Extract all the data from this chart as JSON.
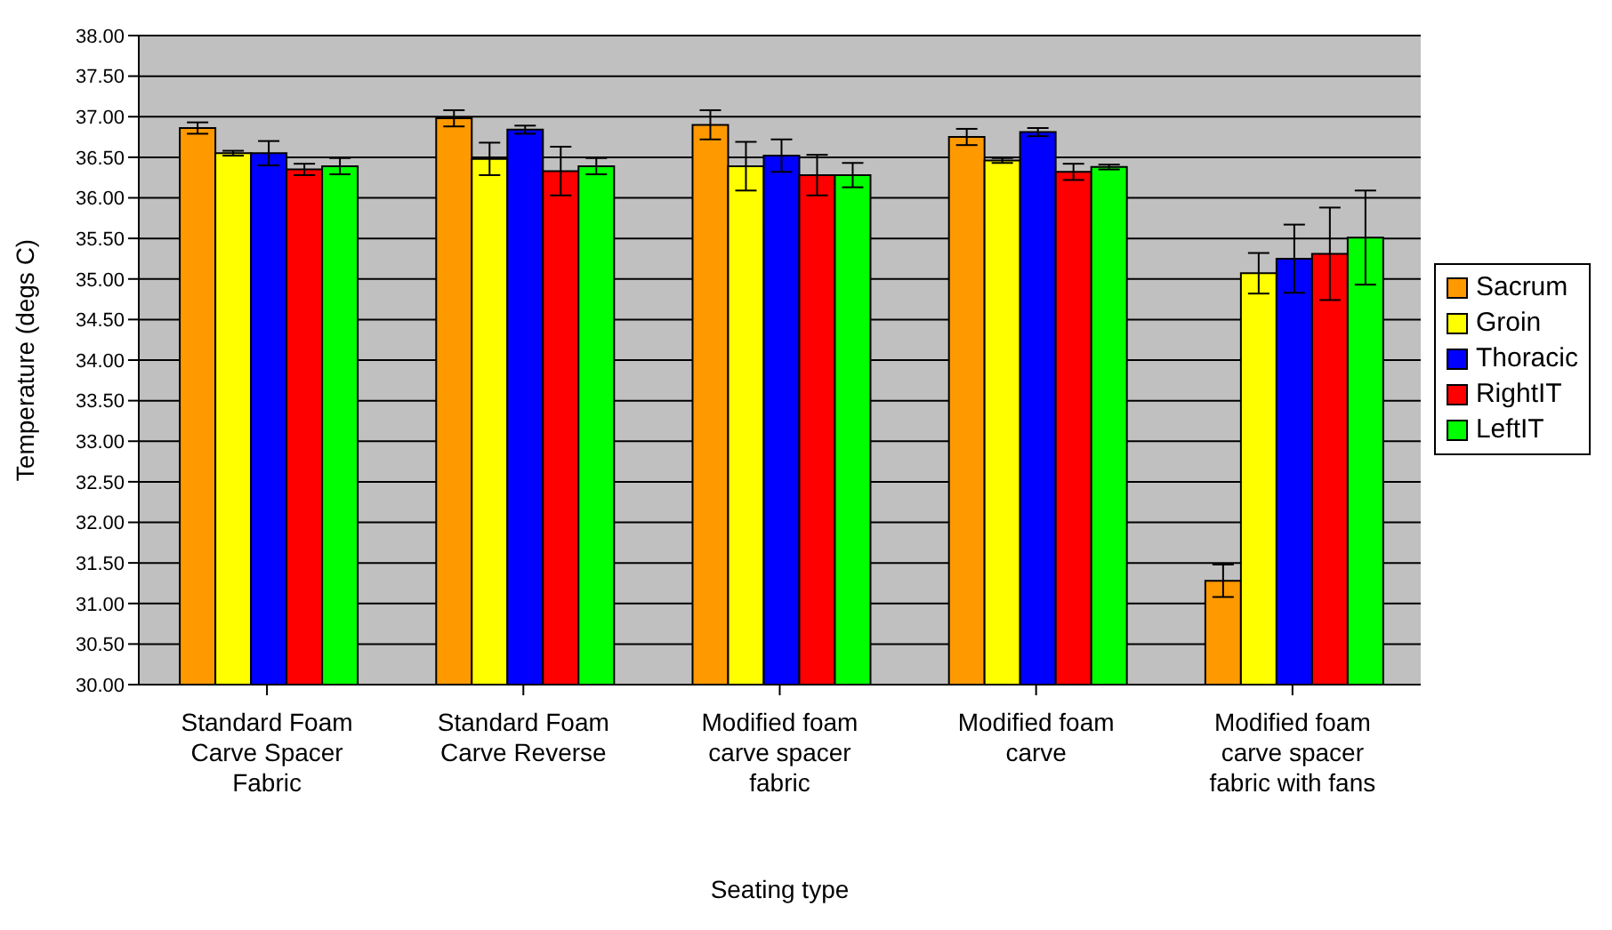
{
  "chart_data": {
    "type": "bar",
    "xlabel": "Seating type",
    "ylabel": "Temperature (degs C)",
    "categories": [
      "Standard Foam Carve Spacer Fabric",
      "Standard Foam Carve Reverse",
      "Modified foam carve spacer fabric",
      "Modified foam carve",
      "Modified foam carve spacer fabric with fans"
    ],
    "series": [
      {
        "name": "Sacrum",
        "color": "#ff9900",
        "values": [
          36.86,
          36.98,
          36.9,
          36.75,
          31.28
        ],
        "errors": [
          0.07,
          0.1,
          0.18,
          0.1,
          0.2
        ]
      },
      {
        "name": "Groin",
        "color": "#ffff00",
        "values": [
          36.55,
          36.48,
          36.39,
          36.46,
          35.07
        ],
        "errors": [
          0.03,
          0.2,
          0.3,
          0.03,
          0.25
        ]
      },
      {
        "name": "Thoracic",
        "color": "#0000ff",
        "values": [
          36.55,
          36.84,
          36.52,
          36.81,
          35.25
        ],
        "errors": [
          0.15,
          0.05,
          0.2,
          0.05,
          0.42
        ]
      },
      {
        "name": "RightIT",
        "color": "#ff0000",
        "values": [
          36.35,
          36.33,
          36.28,
          36.32,
          35.31
        ],
        "errors": [
          0.07,
          0.3,
          0.25,
          0.1,
          0.57
        ]
      },
      {
        "name": "LeftIT",
        "color": "#00ff00",
        "values": [
          36.39,
          36.39,
          36.28,
          36.38,
          35.51
        ],
        "errors": [
          0.1,
          0.1,
          0.15,
          0.03,
          0.58
        ]
      }
    ],
    "ylim": [
      30,
      38
    ],
    "yticks": [
      {
        "value": 30,
        "label": "30.00"
      },
      {
        "value": 30.5,
        "label": "30.50"
      },
      {
        "value": 31,
        "label": "31.00"
      },
      {
        "value": 31.5,
        "label": "31.50"
      },
      {
        "value": 32,
        "label": "32.00"
      },
      {
        "value": 32.5,
        "label": "32.50"
      },
      {
        "value": 33,
        "label": "33.00"
      },
      {
        "value": 33.5,
        "label": "33.50"
      },
      {
        "value": 34,
        "label": "34.00"
      },
      {
        "value": 34.5,
        "label": "34.50"
      },
      {
        "value": 35,
        "label": "35.00"
      },
      {
        "value": 35.5,
        "label": "35.50"
      },
      {
        "value": 36,
        "label": "36.00"
      },
      {
        "value": 36.5,
        "label": "36.50"
      },
      {
        "value": 37,
        "label": "37.00"
      },
      {
        "value": 37.5,
        "label": "37.50"
      },
      {
        "value": 38,
        "label": "38.00"
      }
    ],
    "grid": "y",
    "legend": "right"
  }
}
